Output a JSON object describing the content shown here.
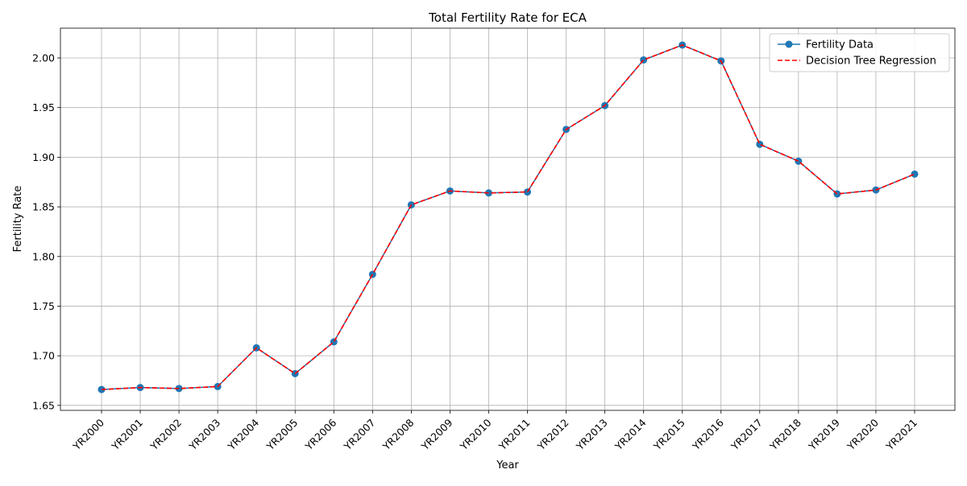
{
  "chart_data": {
    "type": "line",
    "title": "Total Fertility Rate for ECA",
    "xlabel": "Year",
    "ylabel": "Fertility Rate",
    "categories": [
      "YR2000",
      "YR2001",
      "YR2002",
      "YR2003",
      "YR2004",
      "YR2005",
      "YR2006",
      "YR2007",
      "YR2008",
      "YR2009",
      "YR2010",
      "YR2011",
      "YR2012",
      "YR2013",
      "YR2014",
      "YR2015",
      "YR2016",
      "YR2017",
      "YR2018",
      "YR2019",
      "YR2020",
      "YR2021"
    ],
    "ylim": [
      1.645,
      2.03
    ],
    "yticks": [
      1.65,
      1.7,
      1.75,
      1.8,
      1.85,
      1.9,
      1.95,
      2.0
    ],
    "ytick_labels": [
      "1.65",
      "1.70",
      "1.75",
      "1.80",
      "1.85",
      "1.90",
      "1.95",
      "2.00"
    ],
    "grid": true,
    "legend_position": "top-right",
    "series": [
      {
        "name": "Fertility Data",
        "style": "solid-with-markers",
        "color": "#1f77b4",
        "values": [
          1.666,
          1.668,
          1.667,
          1.669,
          1.708,
          1.682,
          1.714,
          1.782,
          1.852,
          1.866,
          1.864,
          1.865,
          1.928,
          1.952,
          1.998,
          2.013,
          1.997,
          1.913,
          1.896,
          1.863,
          1.867,
          1.883
        ]
      },
      {
        "name": "Decision Tree Regression",
        "style": "dashed",
        "color": "#ff0000",
        "values": [
          1.666,
          1.668,
          1.667,
          1.669,
          1.708,
          1.682,
          1.714,
          1.782,
          1.852,
          1.866,
          1.864,
          1.865,
          1.928,
          1.952,
          1.998,
          2.013,
          1.997,
          1.913,
          1.896,
          1.863,
          1.867,
          1.883
        ]
      }
    ]
  }
}
